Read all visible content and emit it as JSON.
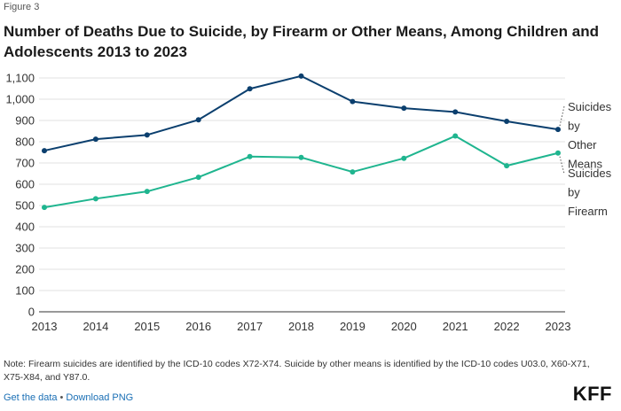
{
  "figure_label": "Figure 3",
  "footer": {
    "note": "Note: Firearm suicides are identified by the ICD-10 codes X72-X74. Suicide by other means is identified by the ICD-10 codes U03.0, X60-X71, X75-X84, and Y87.0.",
    "get_data": "Get the data",
    "separator": "•",
    "download": "Download PNG",
    "brand": "KFF"
  },
  "chart_data": {
    "type": "line",
    "title": "Number of Deaths Due to Suicide, by Firearm or Other Means, Among Children and Adolescents 2013 to 2023",
    "xlabel": "",
    "ylabel": "",
    "x": [
      "2013",
      "2014",
      "2015",
      "2016",
      "2017",
      "2018",
      "2019",
      "2020",
      "2021",
      "2022",
      "2023"
    ],
    "y_ticks": [
      "0",
      "100",
      "200",
      "300",
      "400",
      "500",
      "600",
      "700",
      "800",
      "900",
      "1,000",
      "1,100"
    ],
    "ylim": [
      0,
      1100
    ],
    "grid": true,
    "series": [
      {
        "name": "Suicides by Other Means",
        "label_lines": [
          "Suicides",
          "by",
          "Other",
          "Means"
        ],
        "color": "#0b3f6e",
        "values": [
          758,
          812,
          832,
          903,
          1049,
          1109,
          989,
          958,
          940,
          896,
          858
        ]
      },
      {
        "name": "Suicides by Firearm",
        "label_lines": [
          "Suicides",
          "by",
          "Firearm"
        ],
        "color": "#1fb58f",
        "values": [
          491,
          532,
          566,
          633,
          730,
          726,
          658,
          722,
          827,
          687,
          747
        ]
      }
    ]
  }
}
